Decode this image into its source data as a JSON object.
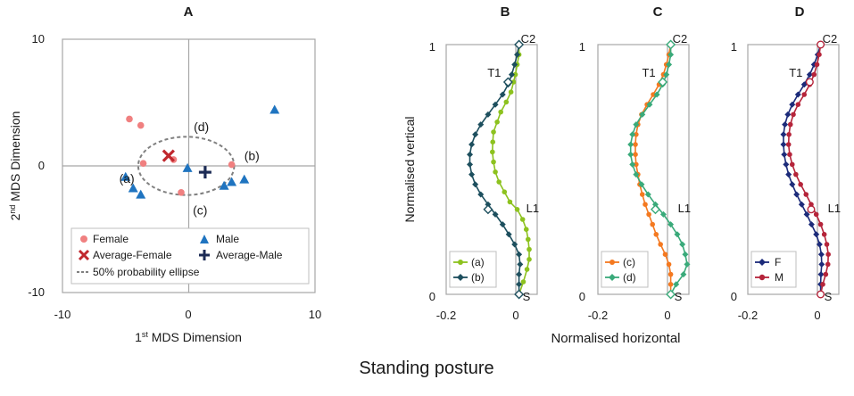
{
  "figure": {
    "caption": "Standing posture",
    "shared_xlabel": "Normalised horizontal"
  },
  "colors": {
    "female": "#f08080",
    "avg_female": "#c0272d",
    "male": "#1f74c0",
    "avg_male": "#1c2b55",
    "ellipse": "#808080",
    "a": "#8dc21f",
    "b": "#1d4f5e",
    "c": "#f47920",
    "d": "#3aaa7a",
    "F": "#1c2b7a",
    "M": "#b5243a",
    "axis": "#a6a6a6"
  },
  "chart_data": [
    {
      "panel": "A",
      "type": "scatter",
      "xlabel": "1st MDS Dimension",
      "xlabel_main": "1",
      "xlabel_sup": "st",
      "xlabel_rest": " MDS Dimension",
      "ylabel": "2nd MDS Dimension",
      "ylabel_main": "2",
      "ylabel_sup": "nd",
      "ylabel_rest": " MDS Dimension",
      "xlim": [
        -10,
        10
      ],
      "ylim": [
        -10,
        10
      ],
      "xticks": [
        "-10",
        "0",
        "10"
      ],
      "yticks": [
        "10",
        "0",
        "-10"
      ],
      "series": [
        {
          "name": "Female",
          "marker": "circle",
          "points": [
            [
              -4.7,
              3.7
            ],
            [
              -3.8,
              3.2
            ],
            [
              -3.6,
              0.2
            ],
            [
              -1.2,
              0.5
            ],
            [
              -0.6,
              -2.1
            ],
            [
              3.4,
              0.1
            ]
          ]
        },
        {
          "name": "Male",
          "marker": "triangle",
          "points": [
            [
              6.8,
              4.4
            ],
            [
              -0.1,
              -0.2
            ],
            [
              -5.0,
              -0.9
            ],
            [
              -4.4,
              -1.8
            ],
            [
              -3.8,
              -2.3
            ],
            [
              2.8,
              -1.6
            ],
            [
              3.4,
              -1.3
            ],
            [
              4.4,
              -1.1
            ]
          ]
        },
        {
          "name": "Average-Female",
          "marker": "x",
          "points": [
            [
              -1.6,
              0.8
            ]
          ]
        },
        {
          "name": "Average-Male",
          "marker": "plus",
          "points": [
            [
              1.3,
              -0.5
            ]
          ]
        }
      ],
      "ellipse": {
        "label": "50% probability ellipse",
        "cx": -0.2,
        "cy": 0.0,
        "rx": 3.8,
        "ry": 2.3
      },
      "annotations": [
        {
          "text": "(a)",
          "x": -4.9,
          "y": -1.0
        },
        {
          "text": "(b)",
          "x": 5.0,
          "y": 0.8
        },
        {
          "text": "(c)",
          "x": 0.9,
          "y": -3.5
        },
        {
          "text": "(d)",
          "x": 1.0,
          "y": 3.1
        }
      ],
      "legend": [
        "Female",
        "Male",
        "Average-Female",
        "Average-Male",
        "50% probability ellipse"
      ]
    },
    {
      "panel": "B",
      "type": "line",
      "ylabel": "Normalised vertical",
      "xlim": [
        -0.2,
        0.05
      ],
      "ylim": [
        0,
        1
      ],
      "xticks": [
        "-0.2",
        "0"
      ],
      "yticks": [
        "1",
        "0"
      ],
      "landmarks": [
        {
          "label": "C2",
          "y": 1.0
        },
        {
          "label": "T1",
          "y": 0.85
        },
        {
          "label": "L1",
          "y": 0.34
        },
        {
          "label": "S",
          "y": 0.0
        }
      ],
      "series": [
        {
          "name": "(a)",
          "marker": "filled-circle",
          "x": [
            0.0,
            0.0,
            -0.005,
            -0.01,
            -0.015,
            -0.022,
            -0.035,
            -0.05,
            -0.06,
            -0.07,
            -0.072,
            -0.073,
            -0.07,
            -0.065,
            -0.055,
            -0.04,
            -0.025,
            -0.005,
            0.01,
            0.02,
            0.025,
            0.028,
            0.028,
            0.022,
            0.012,
            0.0
          ],
          "y": [
            1.0,
            0.96,
            0.92,
            0.88,
            0.85,
            0.81,
            0.77,
            0.73,
            0.69,
            0.65,
            0.61,
            0.57,
            0.53,
            0.49,
            0.45,
            0.41,
            0.37,
            0.34,
            0.3,
            0.26,
            0.22,
            0.18,
            0.14,
            0.1,
            0.05,
            0.0
          ]
        },
        {
          "name": "(b)",
          "marker": "filled-diamond",
          "x": [
            0.0,
            -0.005,
            -0.012,
            -0.02,
            -0.03,
            -0.045,
            -0.065,
            -0.085,
            -0.105,
            -0.12,
            -0.13,
            -0.135,
            -0.135,
            -0.13,
            -0.12,
            -0.105,
            -0.085,
            -0.065,
            -0.045,
            -0.028,
            -0.012,
            0.0,
            0.003,
            0.0,
            0.0,
            0.0
          ],
          "y": [
            1.0,
            0.96,
            0.92,
            0.88,
            0.84,
            0.8,
            0.76,
            0.72,
            0.68,
            0.64,
            0.6,
            0.56,
            0.52,
            0.48,
            0.44,
            0.4,
            0.36,
            0.32,
            0.28,
            0.24,
            0.2,
            0.16,
            0.12,
            0.08,
            0.04,
            0.0
          ]
        }
      ],
      "legend": [
        "(a)",
        "(b)"
      ]
    },
    {
      "panel": "C",
      "type": "line",
      "xlim": [
        -0.2,
        0.05
      ],
      "ylim": [
        0,
        1
      ],
      "xticks": [
        "-0.2",
        "0"
      ],
      "yticks": [
        "1",
        "0"
      ],
      "landmarks": [
        {
          "label": "C2",
          "y": 1.0
        },
        {
          "label": "T1",
          "y": 0.85
        },
        {
          "label": "L1",
          "y": 0.34
        },
        {
          "label": "S",
          "y": 0.0
        }
      ],
      "series": [
        {
          "name": "(c)",
          "marker": "filled-circle",
          "x": [
            0.0,
            -0.005,
            -0.012,
            -0.02,
            -0.032,
            -0.048,
            -0.065,
            -0.08,
            -0.09,
            -0.095,
            -0.097,
            -0.097,
            -0.095,
            -0.09,
            -0.085,
            -0.078,
            -0.07,
            -0.06,
            -0.05,
            -0.04,
            -0.028,
            -0.015,
            -0.005,
            0.0,
            0.0,
            0.0
          ],
          "y": [
            1.0,
            0.96,
            0.92,
            0.88,
            0.84,
            0.8,
            0.76,
            0.72,
            0.68,
            0.64,
            0.6,
            0.56,
            0.52,
            0.48,
            0.44,
            0.4,
            0.36,
            0.32,
            0.28,
            0.24,
            0.2,
            0.16,
            0.12,
            0.08,
            0.04,
            0.0
          ]
        },
        {
          "name": "(d)",
          "marker": "filled-diamond",
          "x": [
            0.0,
            0.0,
            -0.005,
            -0.012,
            -0.022,
            -0.038,
            -0.058,
            -0.078,
            -0.095,
            -0.105,
            -0.11,
            -0.11,
            -0.105,
            -0.095,
            -0.08,
            -0.062,
            -0.042,
            -0.02,
            0.0,
            0.018,
            0.032,
            0.04,
            0.045,
            0.035,
            0.015,
            0.0
          ],
          "y": [
            1.0,
            0.96,
            0.92,
            0.88,
            0.84,
            0.8,
            0.76,
            0.72,
            0.68,
            0.64,
            0.6,
            0.56,
            0.52,
            0.48,
            0.44,
            0.4,
            0.36,
            0.32,
            0.28,
            0.24,
            0.2,
            0.16,
            0.12,
            0.08,
            0.04,
            0.0
          ]
        }
      ],
      "legend": [
        "(c)",
        "(d)"
      ]
    },
    {
      "panel": "D",
      "type": "line",
      "xlim": [
        -0.2,
        0.05
      ],
      "ylim": [
        0,
        1
      ],
      "xticks": [
        "-0.2",
        "0"
      ],
      "yticks": [
        "1",
        "0"
      ],
      "landmarks": [
        {
          "label": "C2",
          "y": 1.0
        },
        {
          "label": "T1",
          "y": 0.85
        },
        {
          "label": "L1",
          "y": 0.34
        },
        {
          "label": "S",
          "y": 0.0
        }
      ],
      "series": [
        {
          "name": "F",
          "marker": "filled-diamond",
          "x": [
            0.0,
            -0.008,
            -0.018,
            -0.03,
            -0.045,
            -0.062,
            -0.078,
            -0.09,
            -0.098,
            -0.102,
            -0.102,
            -0.1,
            -0.095,
            -0.088,
            -0.078,
            -0.066,
            -0.052,
            -0.038,
            -0.025,
            -0.012,
            -0.003,
            0.002,
            0.003,
            0.001,
            0.0,
            0.0
          ],
          "y": [
            1.0,
            0.96,
            0.92,
            0.88,
            0.84,
            0.8,
            0.76,
            0.72,
            0.68,
            0.64,
            0.6,
            0.56,
            0.52,
            0.48,
            0.44,
            0.4,
            0.36,
            0.32,
            0.28,
            0.24,
            0.2,
            0.16,
            0.12,
            0.08,
            0.04,
            0.0
          ]
        },
        {
          "name": "M",
          "marker": "filled-circle",
          "x": [
            0.0,
            -0.004,
            -0.01,
            -0.018,
            -0.03,
            -0.045,
            -0.062,
            -0.075,
            -0.083,
            -0.087,
            -0.088,
            -0.085,
            -0.078,
            -0.068,
            -0.055,
            -0.04,
            -0.026,
            -0.012,
            0.0,
            0.01,
            0.017,
            0.021,
            0.02,
            0.014,
            0.006,
            0.0
          ],
          "y": [
            1.0,
            0.96,
            0.92,
            0.88,
            0.84,
            0.8,
            0.76,
            0.72,
            0.68,
            0.64,
            0.6,
            0.56,
            0.52,
            0.48,
            0.44,
            0.4,
            0.36,
            0.32,
            0.28,
            0.24,
            0.2,
            0.16,
            0.12,
            0.08,
            0.04,
            0.0
          ]
        }
      ],
      "legend": [
        "F",
        "M"
      ]
    }
  ]
}
